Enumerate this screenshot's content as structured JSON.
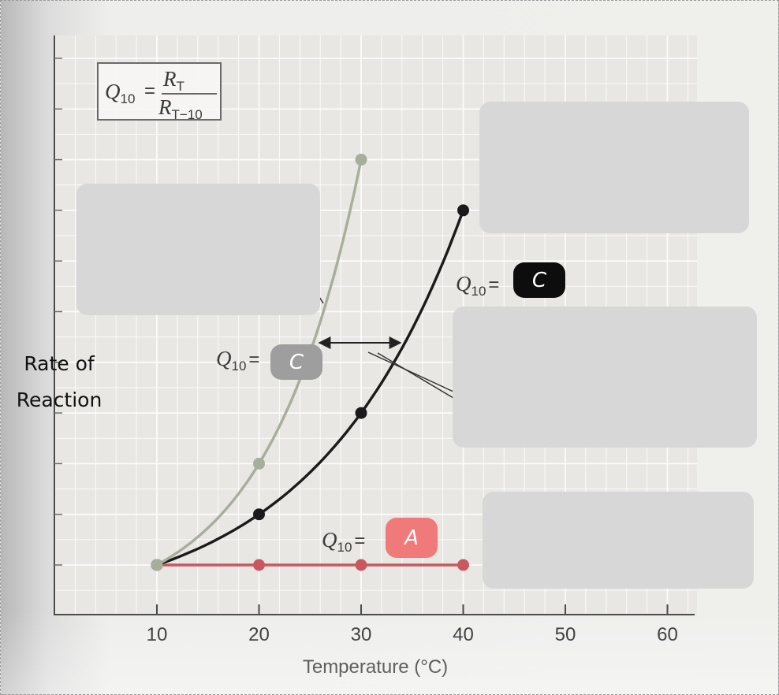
{
  "chart_data": {
    "type": "line",
    "xlabel": "Temperature (°C)",
    "ylabel": "Rate of Reaction",
    "xlim": [
      0,
      65
    ],
    "ylim": [
      0,
      11
    ],
    "x_ticks": [
      "10",
      "20",
      "30",
      "40",
      "50",
      "60"
    ],
    "x_tick_values": [
      10,
      20,
      30,
      40,
      50,
      60
    ],
    "y_tick_values": [
      1,
      2,
      3,
      4,
      5,
      6,
      7,
      8,
      9,
      10,
      11
    ],
    "grid": true,
    "series": [
      {
        "name": "",
        "color": "#a7ae9c",
        "x": [
          10,
          20,
          30
        ],
        "y": [
          1,
          3,
          9
        ]
      },
      {
        "name": "",
        "color": "#1a1a1a",
        "x": [
          10,
          20,
          30,
          40
        ],
        "y": [
          1,
          2,
          4,
          8
        ]
      },
      {
        "name": "",
        "color": "#c9575f",
        "x": [
          10,
          20,
          30,
          40
        ],
        "y": [
          1,
          1,
          1,
          1
        ]
      }
    ],
    "formula": {
      "lhs": "Q",
      "lhs_sub": "10",
      "num": "R",
      "num_sub": "T",
      "den": "R",
      "den_sub": "T−10"
    },
    "annotations": [
      {
        "prefix": "Q",
        "sub": "10",
        "eq": "=",
        "answer": "C",
        "style": "gray"
      },
      {
        "prefix": "Q",
        "sub": "10",
        "eq": "=",
        "answer": "C",
        "style": "black"
      },
      {
        "prefix": "Q",
        "sub": "10",
        "eq": "=",
        "answer": "A",
        "style": "red"
      }
    ]
  },
  "colors": {
    "pill_gray": "#9e9e9e",
    "pill_black": "#0d0d0d",
    "pill_red": "#f07a7a",
    "hidden_box": "#d7d7d7"
  },
  "ylabel_lines": [
    "Rate of",
    "Reaction"
  ]
}
